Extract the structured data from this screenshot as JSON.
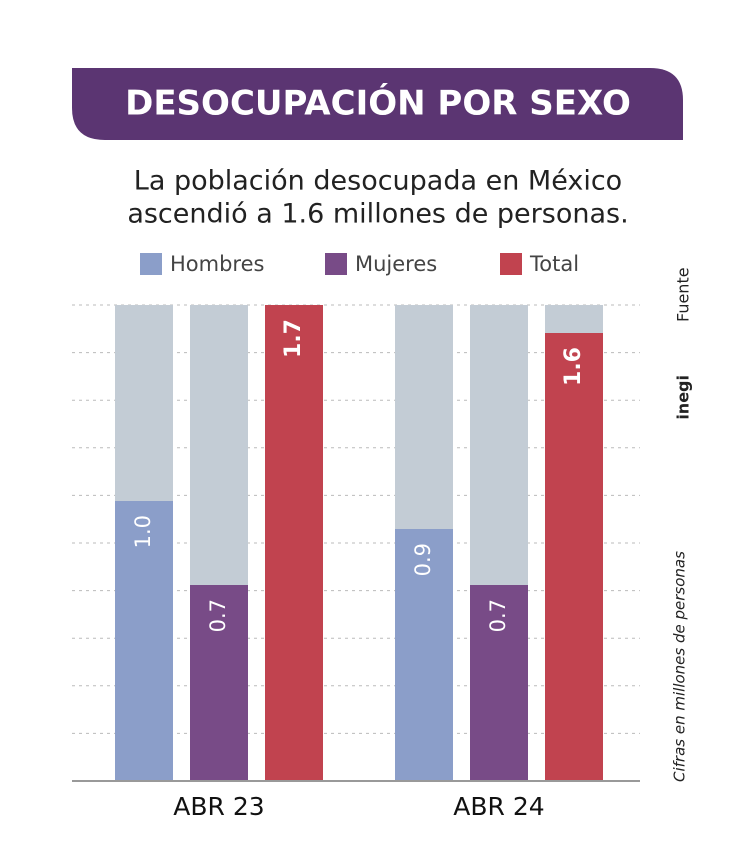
{
  "chart_data": {
    "type": "bar",
    "title": "DESOCUPACIÓN POR SEXO",
    "subtitle": [
      "La población desocupada en México",
      "ascendió a 1.6 millones de personas."
    ],
    "categories": [
      "ABR 23",
      "ABR 24"
    ],
    "series": [
      {
        "name": "Hombres",
        "color": "#8b9ec9",
        "values": [
          1.0,
          0.9
        ],
        "value_labels": [
          "1.0",
          "0.9"
        ]
      },
      {
        "name": "Mujeres",
        "color": "#784b87",
        "values": [
          0.7,
          0.7
        ],
        "value_labels": [
          "0.7",
          "0.7"
        ]
      },
      {
        "name": "Total",
        "color": "#c1434f",
        "values": [
          1.7,
          1.6
        ],
        "value_labels": [
          "1.7",
          "1.6"
        ]
      }
    ],
    "ylim": [
      0,
      1.7
    ],
    "source_label": "Fuente",
    "source": "inegi",
    "note": "Cifras en millones de personas"
  }
}
